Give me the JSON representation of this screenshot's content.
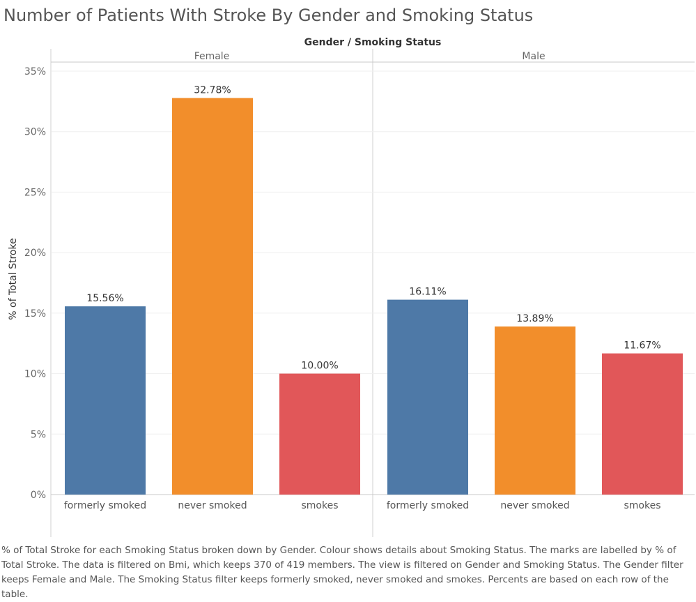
{
  "title": "Number of Patients With Stroke By Gender and Smoking Status",
  "caption": "% of Total Stroke for each Smoking Status broken down by Gender.  Colour shows details about Smoking Status.  The marks are labelled by % of Total Stroke. The data is filtered on Bmi, which keeps 370 of 419 members. The view is filtered on Gender and Smoking Status. The Gender filter keeps Female and Male. The Smoking Status filter keeps formerly smoked, never smoked and smokes. Percents are based on each row of the table.",
  "chart_data": {
    "type": "bar",
    "header_title": "Gender  /  Smoking Status",
    "ylabel": "% of Total Stroke",
    "ylim": [
      0,
      35
    ],
    "yticks": [
      "0%",
      "5%",
      "10%",
      "15%",
      "20%",
      "25%",
      "30%",
      "35%"
    ],
    "ytick_values": [
      0,
      5,
      10,
      15,
      20,
      25,
      30,
      35
    ],
    "grid": true,
    "colors": {
      "formerly smoked": "#4e79a7",
      "never smoked": "#f28e2b",
      "smokes": "#e15759"
    },
    "groups": [
      {
        "name": "Female",
        "categories": [
          "formerly smoked",
          "never smoked",
          "smokes"
        ],
        "values": [
          15.56,
          32.78,
          10.0
        ],
        "labels": [
          "15.56%",
          "32.78%",
          "10.00%"
        ]
      },
      {
        "name": "Male",
        "categories": [
          "formerly smoked",
          "never smoked",
          "smokes"
        ],
        "values": [
          16.11,
          13.89,
          11.67
        ],
        "labels": [
          "16.11%",
          "13.89%",
          "11.67%"
        ]
      }
    ]
  }
}
